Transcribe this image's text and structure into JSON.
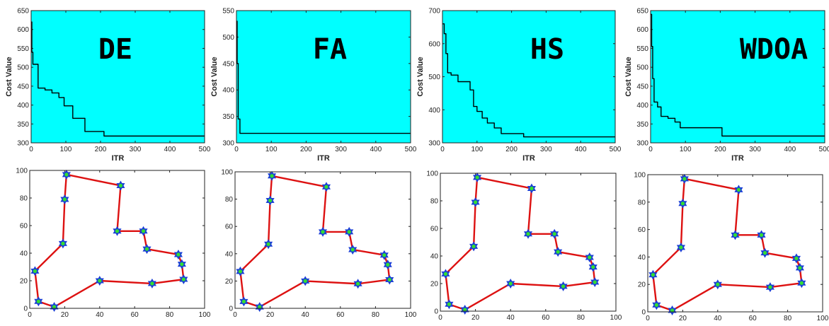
{
  "colors": {
    "plot_background": "#00ffff",
    "convergence_line": "#000000",
    "route_line": "#dd1111",
    "marker_outer": "#1a3fd6",
    "marker_inner": "#33dd33"
  },
  "chart_data": [
    {
      "type": "line",
      "title": "DE",
      "xlabel": "ITR",
      "ylabel": "Cost Value",
      "xlim": [
        0,
        500
      ],
      "ylim": [
        300,
        650
      ],
      "xticks": [
        0,
        100,
        200,
        300,
        400,
        500
      ],
      "yticks": [
        300,
        350,
        400,
        450,
        500,
        550,
        600,
        650
      ],
      "x": [
        0,
        2,
        5,
        10,
        20,
        40,
        60,
        80,
        95,
        120,
        155,
        210,
        500
      ],
      "y": [
        620,
        540,
        508,
        508,
        445,
        440,
        432,
        420,
        398,
        365,
        330,
        318,
        318
      ]
    },
    {
      "type": "line",
      "title": "FA",
      "xlabel": "ITR",
      "ylabel": "Cost Value",
      "xlim": [
        0,
        500
      ],
      "ylim": [
        300,
        550
      ],
      "xticks": [
        0,
        100,
        200,
        300,
        400,
        500
      ],
      "yticks": [
        300,
        350,
        400,
        450,
        500,
        550
      ],
      "x": [
        0,
        2,
        5,
        10,
        500
      ],
      "y": [
        530,
        450,
        345,
        318,
        318
      ]
    },
    {
      "type": "line",
      "title": "HS",
      "xlabel": "ITR",
      "ylabel": "Cost Value",
      "xlim": [
        0,
        500
      ],
      "ylim": [
        300,
        700
      ],
      "xticks": [
        0,
        100,
        200,
        300,
        400,
        500
      ],
      "yticks": [
        300,
        400,
        500,
        600,
        700
      ],
      "x": [
        0,
        5,
        10,
        15,
        25,
        45,
        80,
        90,
        100,
        115,
        130,
        150,
        170,
        235,
        500
      ],
      "y": [
        660,
        630,
        570,
        512,
        505,
        485,
        460,
        410,
        395,
        375,
        360,
        345,
        328,
        318,
        318
      ]
    },
    {
      "type": "line",
      "title": "WDOA",
      "xlabel": "ITR",
      "ylabel": "Cost Value",
      "xlim": [
        0,
        500
      ],
      "ylim": [
        300,
        650
      ],
      "xticks": [
        0,
        100,
        200,
        300,
        400,
        500
      ],
      "yticks": [
        300,
        350,
        400,
        450,
        500,
        550,
        600,
        650
      ],
      "x": [
        0,
        3,
        6,
        10,
        20,
        30,
        50,
        70,
        85,
        205,
        500
      ],
      "y": [
        640,
        555,
        470,
        408,
        395,
        370,
        365,
        355,
        340,
        318,
        318
      ]
    },
    {
      "type": "line",
      "title": "",
      "xlabel": "",
      "ylabel": "",
      "xlim": [
        0,
        100
      ],
      "ylim": [
        0,
        100
      ],
      "xticks": [
        0,
        20,
        40,
        60,
        80,
        100
      ],
      "yticks": [
        0,
        20,
        40,
        60,
        80,
        100
      ],
      "x": [
        21,
        52,
        50,
        65,
        67,
        85,
        87,
        88,
        70,
        40,
        14,
        5,
        3,
        19,
        20,
        21
      ],
      "y": [
        97,
        89,
        56,
        56,
        43,
        39,
        32,
        21,
        18,
        20,
        1,
        5,
        27,
        47,
        79,
        97
      ]
    },
    {
      "type": "line",
      "title": "",
      "xlabel": "",
      "ylabel": "",
      "xlim": [
        0,
        100
      ],
      "ylim": [
        0,
        100
      ],
      "xticks": [
        0,
        20,
        40,
        60,
        80,
        100
      ],
      "yticks": [
        0,
        20,
        40,
        60,
        80,
        100
      ],
      "x": [
        21,
        52,
        50,
        65,
        67,
        85,
        87,
        88,
        70,
        40,
        14,
        5,
        3,
        19,
        20,
        21
      ],
      "y": [
        97,
        89,
        56,
        56,
        43,
        39,
        32,
        21,
        18,
        20,
        1,
        5,
        27,
        47,
        79,
        97
      ]
    },
    {
      "type": "line",
      "title": "",
      "xlabel": "",
      "ylabel": "",
      "xlim": [
        0,
        100
      ],
      "ylim": [
        0,
        100
      ],
      "xticks": [
        0,
        20,
        40,
        60,
        80,
        100
      ],
      "yticks": [
        0,
        20,
        40,
        60,
        80,
        100
      ],
      "x": [
        21,
        52,
        50,
        65,
        67,
        85,
        87,
        88,
        70,
        40,
        14,
        5,
        3,
        19,
        20,
        21
      ],
      "y": [
        97,
        89,
        56,
        56,
        43,
        39,
        32,
        21,
        18,
        20,
        1,
        5,
        27,
        47,
        79,
        97
      ]
    },
    {
      "type": "line",
      "title": "",
      "xlabel": "",
      "ylabel": "",
      "xlim": [
        0,
        100
      ],
      "ylim": [
        0,
        100
      ],
      "xticks": [
        0,
        20,
        40,
        60,
        80,
        100
      ],
      "yticks": [
        0,
        20,
        40,
        60,
        80,
        100
      ],
      "x": [
        21,
        52,
        50,
        65,
        67,
        85,
        87,
        88,
        70,
        40,
        14,
        5,
        3,
        19,
        20,
        21
      ],
      "y": [
        97,
        89,
        56,
        56,
        43,
        39,
        32,
        21,
        18,
        20,
        1,
        5,
        27,
        47,
        79,
        97
      ]
    }
  ]
}
